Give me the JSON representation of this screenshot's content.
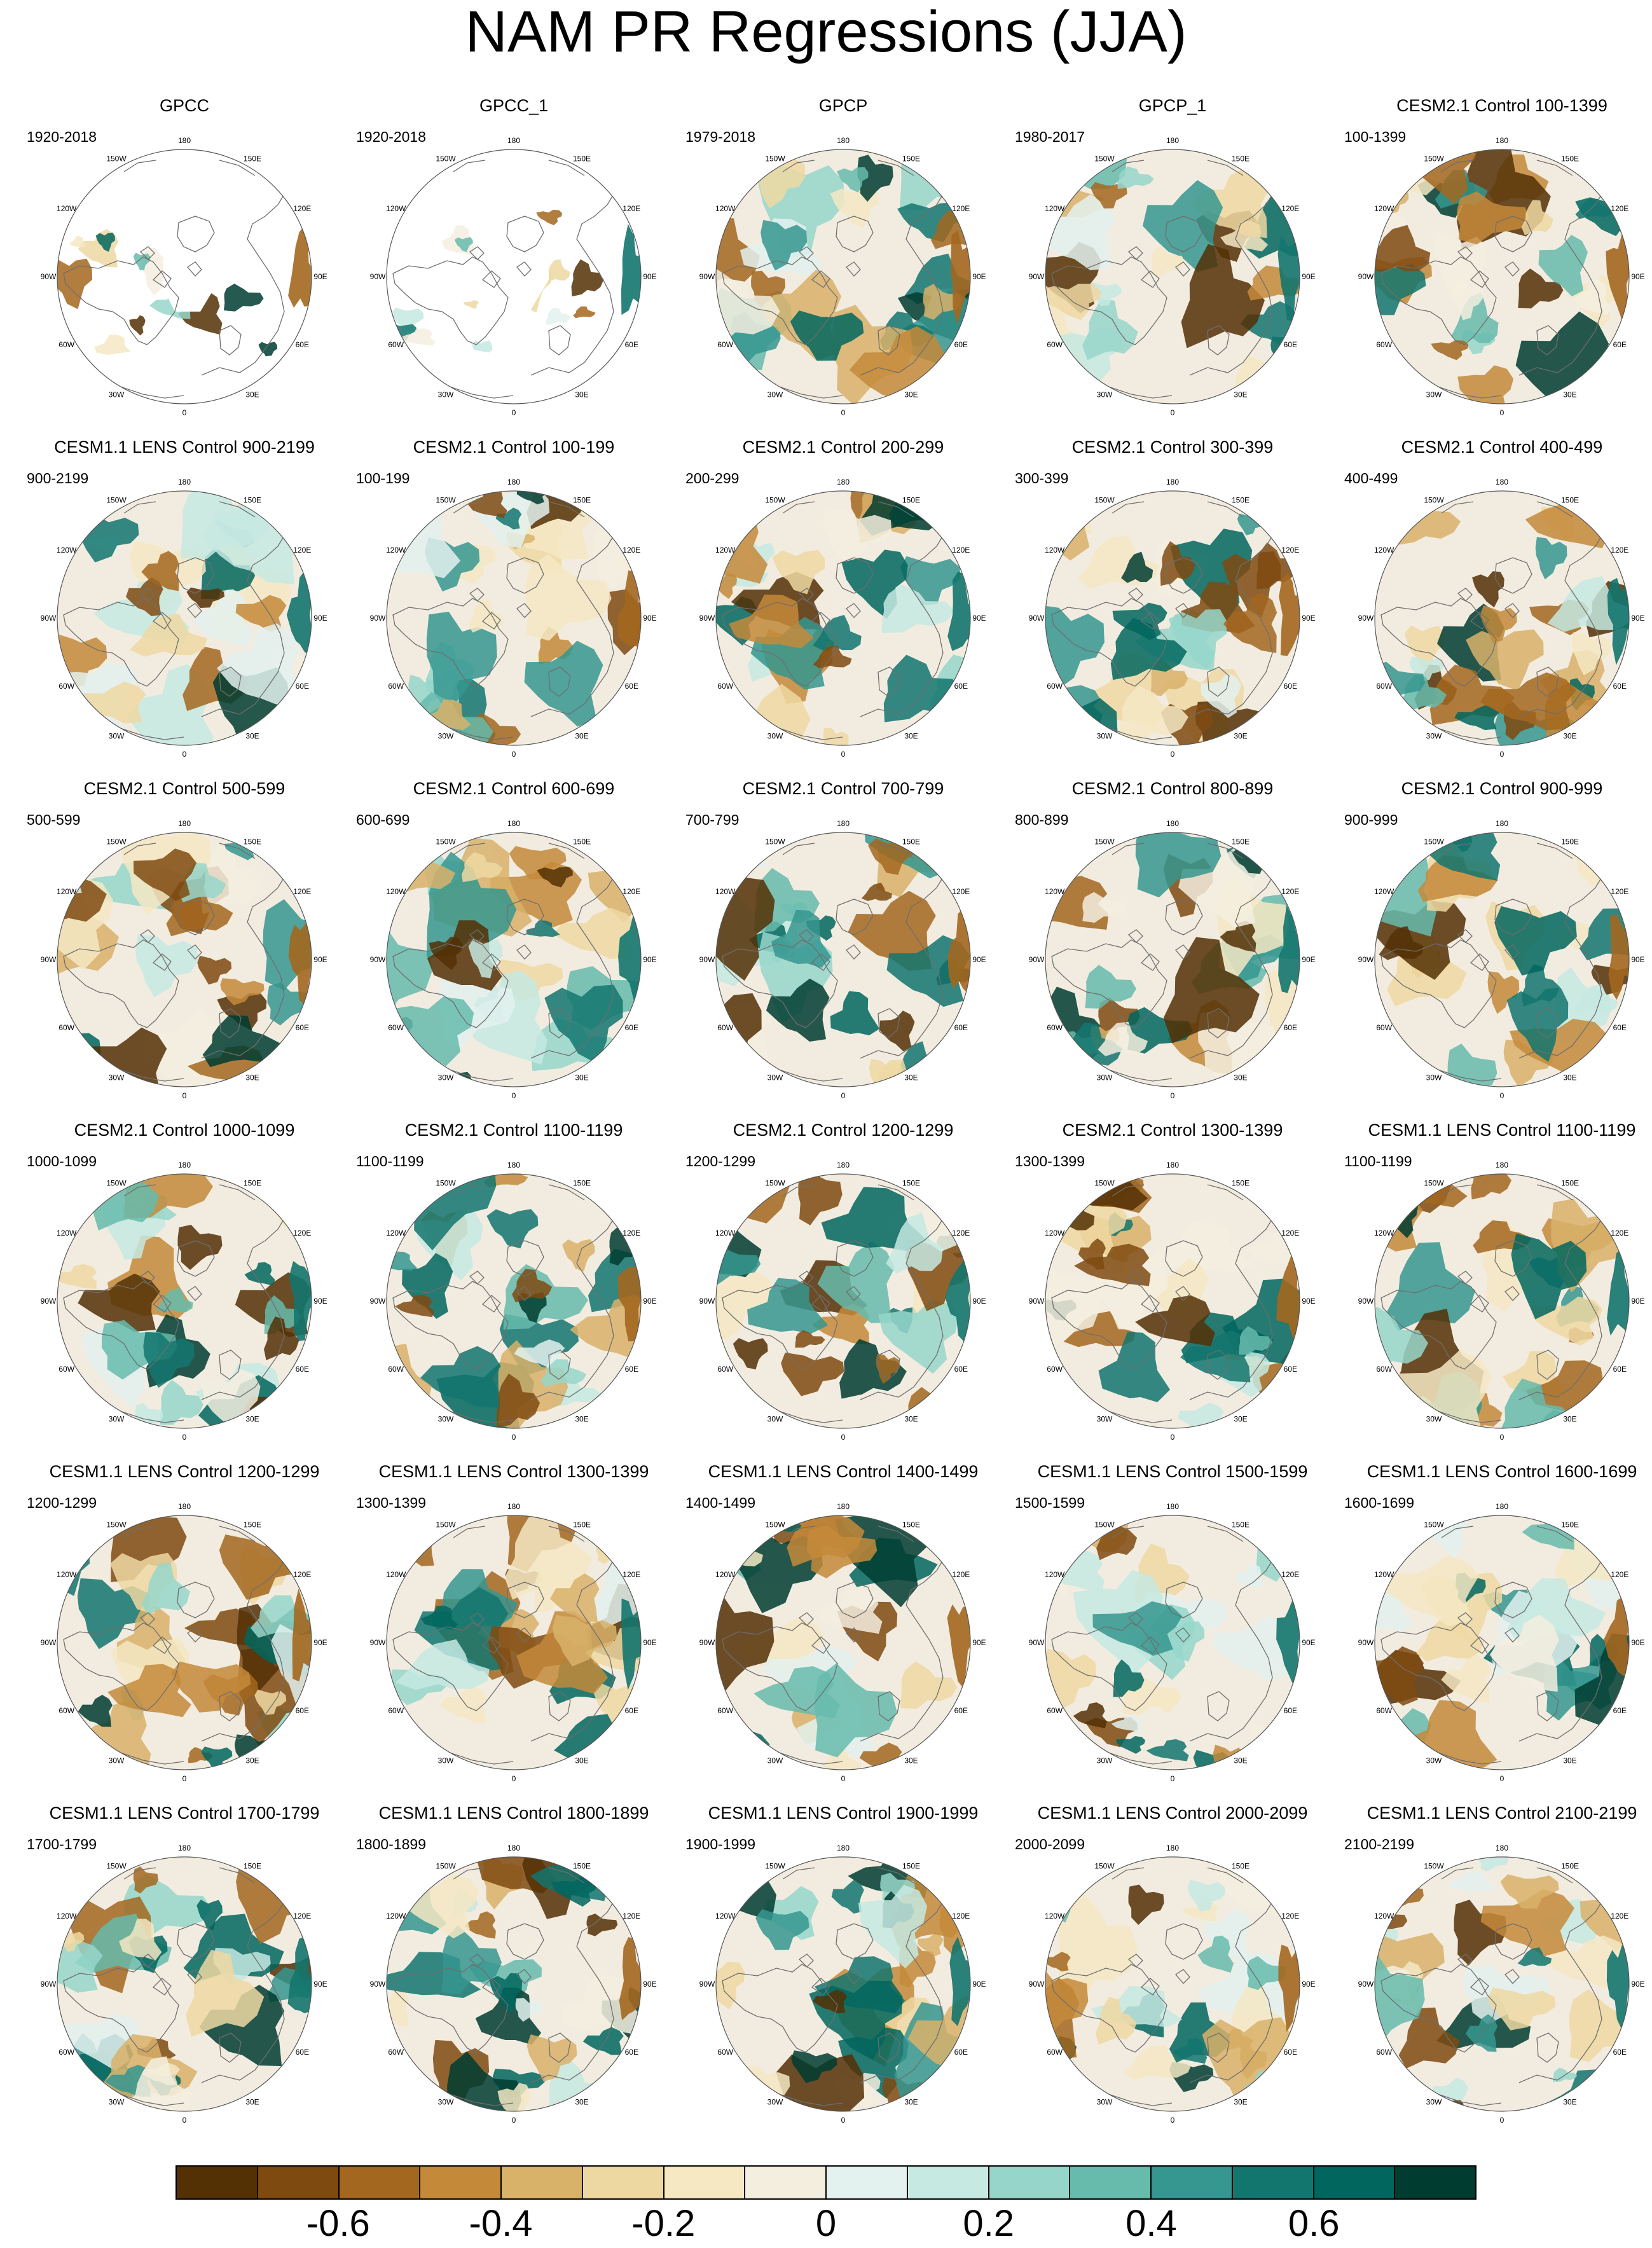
{
  "title": "NAM PR Regressions (JJA)",
  "panels": [
    {
      "title": "GPCC",
      "period": "1920-2018",
      "masked": true
    },
    {
      "title": "GPCC_1",
      "period": "1920-2018",
      "masked": true
    },
    {
      "title": "GPCP",
      "period": "1979-2018",
      "masked": false
    },
    {
      "title": "GPCP_1",
      "period": "1980-2017",
      "masked": false
    },
    {
      "title": "CESM2.1 Control 100-1399",
      "period": "100-1399",
      "masked": false
    },
    {
      "title": "CESM1.1 LENS Control 900-2199",
      "period": "900-2199",
      "masked": false
    },
    {
      "title": "CESM2.1 Control 100-199",
      "period": "100-199",
      "masked": false
    },
    {
      "title": "CESM2.1 Control 200-299",
      "period": "200-299",
      "masked": false
    },
    {
      "title": "CESM2.1 Control 300-399",
      "period": "300-399",
      "masked": false
    },
    {
      "title": "CESM2.1 Control 400-499",
      "period": "400-499",
      "masked": false
    },
    {
      "title": "CESM2.1 Control 500-599",
      "period": "500-599",
      "masked": false
    },
    {
      "title": "CESM2.1 Control 600-699",
      "period": "600-699",
      "masked": false
    },
    {
      "title": "CESM2.1 Control 700-799",
      "period": "700-799",
      "masked": false
    },
    {
      "title": "CESM2.1 Control 800-899",
      "period": "800-899",
      "masked": false
    },
    {
      "title": "CESM2.1 Control 900-999",
      "period": "900-999",
      "masked": false
    },
    {
      "title": "CESM2.1 Control 1000-1099",
      "period": "1000-1099",
      "masked": false
    },
    {
      "title": "CESM2.1 Control 1100-1199",
      "period": "1100-1199",
      "masked": false
    },
    {
      "title": "CESM2.1 Control 1200-1299",
      "period": "1200-1299",
      "masked": false
    },
    {
      "title": "CESM2.1 Control 1300-1399",
      "period": "1300-1399",
      "masked": false
    },
    {
      "title": "CESM1.1 LENS Control 1100-1199",
      "period": "1100-1199",
      "masked": false
    },
    {
      "title": "CESM1.1 LENS Control 1200-1299",
      "period": "1200-1299",
      "masked": false
    },
    {
      "title": "CESM1.1 LENS Control 1300-1399",
      "period": "1300-1399",
      "masked": false
    },
    {
      "title": "CESM1.1 LENS Control 1400-1499",
      "period": "1400-1499",
      "masked": false
    },
    {
      "title": "CESM1.1 LENS Control 1500-1599",
      "period": "1500-1599",
      "masked": false
    },
    {
      "title": "CESM1.1 LENS Control 1600-1699",
      "period": "1600-1699",
      "masked": false
    },
    {
      "title": "CESM1.1 LENS Control 1700-1799",
      "period": "1700-1799",
      "masked": false
    },
    {
      "title": "CESM1.1 LENS Control 1800-1899",
      "period": "1800-1899",
      "masked": false
    },
    {
      "title": "CESM1.1 LENS Control 1900-1999",
      "period": "1900-1999",
      "masked": false
    },
    {
      "title": "CESM1.1 LENS Control 2000-2099",
      "period": "2000-2099",
      "masked": false
    },
    {
      "title": "CESM1.1 LENS Control 2100-2199",
      "period": "2100-2199",
      "masked": false
    }
  ],
  "longitude_labels": [
    "180",
    "150E",
    "120E",
    "90E",
    "60E",
    "30E",
    "0",
    "30W",
    "60W",
    "90W",
    "120W",
    "150W"
  ],
  "colorbar": {
    "colors": [
      "#543005",
      "#7f4a10",
      "#a3671f",
      "#c48a3a",
      "#d9b26a",
      "#eed8a2",
      "#f5e8c3",
      "#f4eedf",
      "#e3f1ef",
      "#c6e9e2",
      "#96d6ca",
      "#66bbad",
      "#35978f",
      "#13766e",
      "#01665e",
      "#003c30"
    ],
    "tick_labels": [
      "-0.6",
      "-0.4",
      "-0.2",
      "0",
      "0.2",
      "0.4",
      "0.6"
    ],
    "tick_values": [
      -0.6,
      -0.4,
      -0.2,
      0,
      0.2,
      0.4,
      0.6
    ],
    "min": -0.8,
    "max": 0.8
  }
}
